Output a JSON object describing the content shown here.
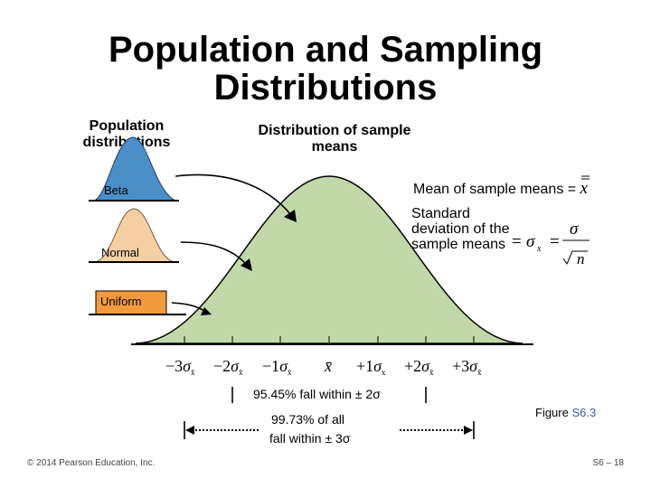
{
  "title": "Population and Sampling Distributions",
  "population_label": "Population distributions",
  "sampling_label": "Distribution of sample means",
  "mean_label": "Mean of sample means = ",
  "sd_label": "Standard deviation of the sample means",
  "populations": [
    {
      "name": "Beta",
      "color": "#4a8fc8"
    },
    {
      "name": "Normal",
      "color": "#f5cfa3"
    },
    {
      "name": "Uniform",
      "color": "#f29a3d"
    }
  ],
  "sampling_color": "#c1d8a8",
  "axis_ticks": [
    "−3σ",
    "−2σ",
    "−1σ",
    "x̄",
    "+1σ",
    "+2σ",
    "+3σ"
  ],
  "fall95": "95.45% fall within ± 2σ",
  "fall99_line1": "99.73% of all",
  "fall99_line2": "fall within ± 3σ",
  "figure_prefix": "Figure ",
  "figure_number": "S6.3",
  "copyright": "© 2014 Pearson Education, Inc.",
  "page_number": "S6 – 18"
}
